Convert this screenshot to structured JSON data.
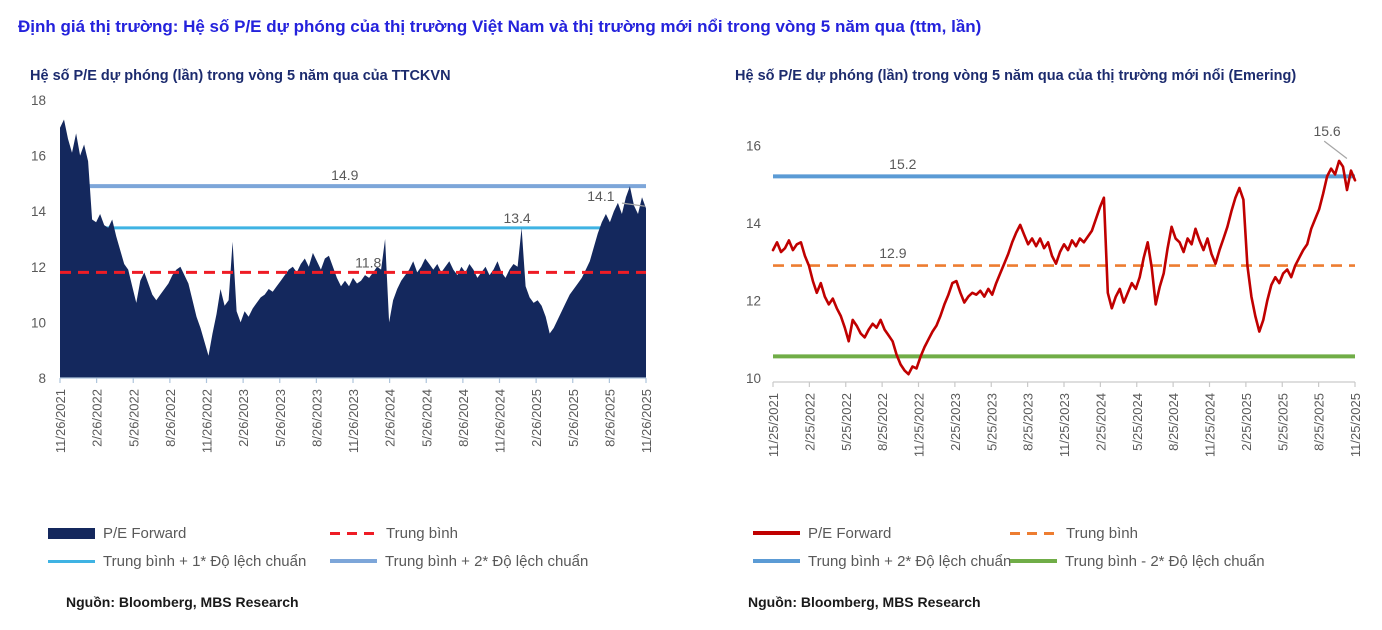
{
  "page": {
    "title": "Định giá thị trường: Hệ số P/E dự phóng của thị trường Việt Nam và thị trường mới nổi trong vòng 5 năm qua (ttm, lần)"
  },
  "colors": {
    "header": "#2422dc",
    "subtitle": "#1c2b6e",
    "axis_text": "#595959",
    "annotation_text": "#595959",
    "navy": "#14285d",
    "cyan": "#3fb3e3",
    "steel": "#7da6d9",
    "red": "#ee1c25",
    "dark_red": "#c00000",
    "orange": "#ed7d31",
    "blue": "#5b9bd5",
    "green": "#70ad47",
    "leader": "#a6a6a6",
    "axis_line_left": "#aec4dc",
    "axis_line_right": "#c9c9c9",
    "source_text": "#1a1a1a"
  },
  "charts": [
    {
      "id": "vn",
      "title": "Hệ số P/E dự phóng (lần) trong vòng 5 năm qua của TTCKVN",
      "source": "Nguồn: Bloomberg, MBS Research",
      "legend": [
        {
          "label": "P/E Forward",
          "swatch": "area",
          "color": "navy"
        },
        {
          "label": "Trung bình",
          "swatch": "dash",
          "color": "red"
        },
        {
          "label": "Trung bình + 1* Độ lệch chuẩn",
          "swatch": "line",
          "color": "cyan",
          "thick": 3
        },
        {
          "label": "Trung bình + 2* Độ lệch chuẩn",
          "swatch": "line",
          "color": "steel",
          "thick": 4
        }
      ],
      "chart_data": {
        "type": "area",
        "title": "Hệ số P/E dự phóng (lần) trong vòng 5 năm qua của TTCKVN",
        "ylim": [
          8,
          18
        ],
        "y_ticks": [
          18,
          16,
          14,
          12,
          10,
          8
        ],
        "x_tick_labels": [
          "11/26/2021",
          "2/26/2022",
          "5/26/2022",
          "8/26/2022",
          "11/26/2022",
          "2/26/2023",
          "5/26/2023",
          "8/26/2023",
          "11/26/2023",
          "2/26/2024",
          "5/26/2024",
          "8/26/2024",
          "11/26/2024",
          "2/26/2025",
          "5/26/2025",
          "8/26/2025",
          "11/26/2025"
        ],
        "series": [
          {
            "name": "P/E Forward",
            "color": "navy",
            "values": [
              17.0,
              17.3,
              16.6,
              16.1,
              16.8,
              16.0,
              16.4,
              15.8,
              13.7,
              13.6,
              13.9,
              13.5,
              13.4,
              13.7,
              13.1,
              12.6,
              12.1,
              11.9,
              11.3,
              10.7,
              11.5,
              11.8,
              11.4,
              11.0,
              10.8,
              11.0,
              11.2,
              11.4,
              11.7,
              11.9,
              12.0,
              11.7,
              11.4,
              10.8,
              10.2,
              9.8,
              9.3,
              8.8,
              9.6,
              10.3,
              11.2,
              10.6,
              10.8,
              12.9,
              10.4,
              10.0,
              10.4,
              10.2,
              10.5,
              10.7,
              10.9,
              11.0,
              11.2,
              11.1,
              11.3,
              11.5,
              11.7,
              11.9,
              12.0,
              11.8,
              12.1,
              12.3,
              12.0,
              12.5,
              12.2,
              11.9,
              12.3,
              12.4,
              12.0,
              11.6,
              11.3,
              11.5,
              11.3,
              11.6,
              11.4,
              11.5,
              11.7,
              11.6,
              11.8,
              12.0,
              11.9,
              13.0,
              10.0,
              10.8,
              11.2,
              11.5,
              11.7,
              11.9,
              12.2,
              11.8,
              12.0,
              12.3,
              12.1,
              11.9,
              12.1,
              11.8,
              12.0,
              12.2,
              11.9,
              11.7,
              12.0,
              11.8,
              12.1,
              11.9,
              11.6,
              11.8,
              12.0,
              11.7,
              11.9,
              12.2,
              11.8,
              11.6,
              11.9,
              12.1,
              12.0,
              13.4,
              11.3,
              10.9,
              10.7,
              10.8,
              10.6,
              10.2,
              9.6,
              9.8,
              10.1,
              10.4,
              10.7,
              11.0,
              11.2,
              11.4,
              11.6,
              11.9,
              12.2,
              12.7,
              13.2,
              13.6,
              13.9,
              13.6,
              14.0,
              14.3,
              13.9,
              14.5,
              14.9,
              14.2,
              13.9,
              14.5,
              14.1
            ]
          }
        ],
        "stat_lines": [
          {
            "name": "Trung bình + 2* Độ lệch chuẩn",
            "value": 14.9,
            "color": "steel",
            "style": "solid",
            "width": 4,
            "layer": "back"
          },
          {
            "name": "Trung bình + 1* Độ lệch chuẩn",
            "value": 13.4,
            "color": "cyan",
            "style": "solid",
            "width": 3,
            "layer": "back"
          },
          {
            "name": "Trung bình",
            "value": 11.8,
            "color": "red",
            "style": "dashed",
            "width": 3,
            "layer": "front"
          }
        ],
        "annotations": [
          {
            "text": "14.9",
            "t": 0.486,
            "v": 15.12
          },
          {
            "text": "13.4",
            "t": 0.78,
            "v": 13.58
          },
          {
            "text": "11.8",
            "t": 0.526,
            "v": 11.97
          },
          {
            "text": "14.1",
            "t": 0.923,
            "v": 14.37,
            "leader": [
              [
                0.959,
                14.29
              ],
              [
                0.998,
                14.18
              ]
            ]
          }
        ]
      }
    },
    {
      "id": "em",
      "title": "Hệ số P/E dự phóng (lần) trong vòng 5 năm qua của thị trường mới nổi (Emering)",
      "source": "Nguồn: Bloomberg, MBS Research",
      "legend": [
        {
          "label": "P/E Forward",
          "swatch": "line",
          "color": "dark_red",
          "thick": 3.5
        },
        {
          "label": "Trung bình",
          "swatch": "dash",
          "color": "orange"
        },
        {
          "label": "Trung bình + 2* Độ lệch chuẩn",
          "swatch": "line",
          "color": "blue",
          "thick": 4
        },
        {
          "label": "Trung bình - 2* Độ lệch chuẩn",
          "swatch": "line",
          "color": "green",
          "thick": 4
        }
      ],
      "chart_data": {
        "type": "line",
        "title": "Hệ số P/E dự phóng (lần) trong vòng 5 năm qua của thị trường mới nổi (Emering)",
        "ylim": [
          9.9,
          16.55
        ],
        "y_ticks": [
          16,
          14,
          12,
          10
        ],
        "x_tick_labels": [
          "11/25/2021",
          "2/25/2022",
          "5/25/2022",
          "8/25/2022",
          "11/25/2022",
          "2/25/2023",
          "5/25/2023",
          "8/25/2023",
          "11/25/2023",
          "2/25/2024",
          "5/25/2024",
          "8/25/2024",
          "11/25/2024",
          "2/25/2025",
          "5/25/2025",
          "8/25/2025",
          "11/25/2025"
        ],
        "series": [
          {
            "name": "P/E Forward",
            "color": "dark_red",
            "values": [
              13.3,
              13.5,
              13.25,
              13.35,
              13.55,
              13.3,
              13.45,
              13.5,
              13.15,
              12.9,
              12.5,
              12.2,
              12.45,
              12.1,
              11.9,
              12.05,
              11.8,
              11.6,
              11.3,
              10.95,
              11.5,
              11.35,
              11.15,
              11.05,
              11.25,
              11.4,
              11.3,
              11.5,
              11.25,
              11.1,
              10.95,
              10.6,
              10.35,
              10.2,
              10.1,
              10.3,
              10.25,
              10.55,
              10.8,
              11.0,
              11.2,
              11.35,
              11.6,
              11.9,
              12.15,
              12.45,
              12.5,
              12.2,
              11.95,
              12.1,
              12.2,
              12.15,
              12.25,
              12.1,
              12.3,
              12.15,
              12.45,
              12.7,
              12.95,
              13.2,
              13.5,
              13.75,
              13.95,
              13.7,
              13.45,
              13.6,
              13.4,
              13.6,
              13.35,
              13.5,
              13.15,
              12.95,
              13.25,
              13.45,
              13.3,
              13.55,
              13.4,
              13.6,
              13.5,
              13.65,
              13.8,
              14.1,
              14.4,
              14.65,
              12.2,
              11.8,
              12.1,
              12.3,
              11.95,
              12.2,
              12.45,
              12.3,
              12.6,
              13.1,
              13.5,
              12.85,
              11.9,
              12.35,
              12.7,
              13.35,
              13.9,
              13.6,
              13.5,
              13.25,
              13.6,
              13.45,
              13.85,
              13.55,
              13.3,
              13.6,
              13.2,
              12.95,
              13.3,
              13.6,
              13.9,
              14.3,
              14.65,
              14.9,
              14.6,
              12.9,
              12.1,
              11.6,
              11.2,
              11.5,
              12.0,
              12.4,
              12.6,
              12.45,
              12.7,
              12.8,
              12.6,
              12.9,
              13.1,
              13.3,
              13.45,
              13.85,
              14.1,
              14.35,
              14.75,
              15.2,
              15.4,
              15.25,
              15.6,
              15.45,
              14.85,
              15.35,
              15.1
            ]
          }
        ],
        "stat_lines": [
          {
            "name": "Trung bình + 2* Độ lệch chuẩn",
            "value": 15.2,
            "color": "blue",
            "style": "solid",
            "width": 4,
            "layer": "back"
          },
          {
            "name": "Trung bình",
            "value": 12.9,
            "color": "orange",
            "style": "dashed",
            "width": 2.6,
            "layer": "back"
          },
          {
            "name": "Trung bình - 2* Độ lệch chuẩn",
            "value": 10.56,
            "color": "green",
            "style": "solid",
            "width": 4,
            "layer": "back"
          }
        ],
        "annotations": [
          {
            "text": "15.2",
            "t": 0.223,
            "v": 15.39
          },
          {
            "text": "12.9",
            "t": 0.206,
            "v": 13.1
          },
          {
            "text": "15.6",
            "t": 0.952,
            "v": 16.24,
            "leader": [
              [
                0.947,
                16.11
              ],
              [
                0.986,
                15.66
              ]
            ]
          }
        ]
      }
    }
  ]
}
